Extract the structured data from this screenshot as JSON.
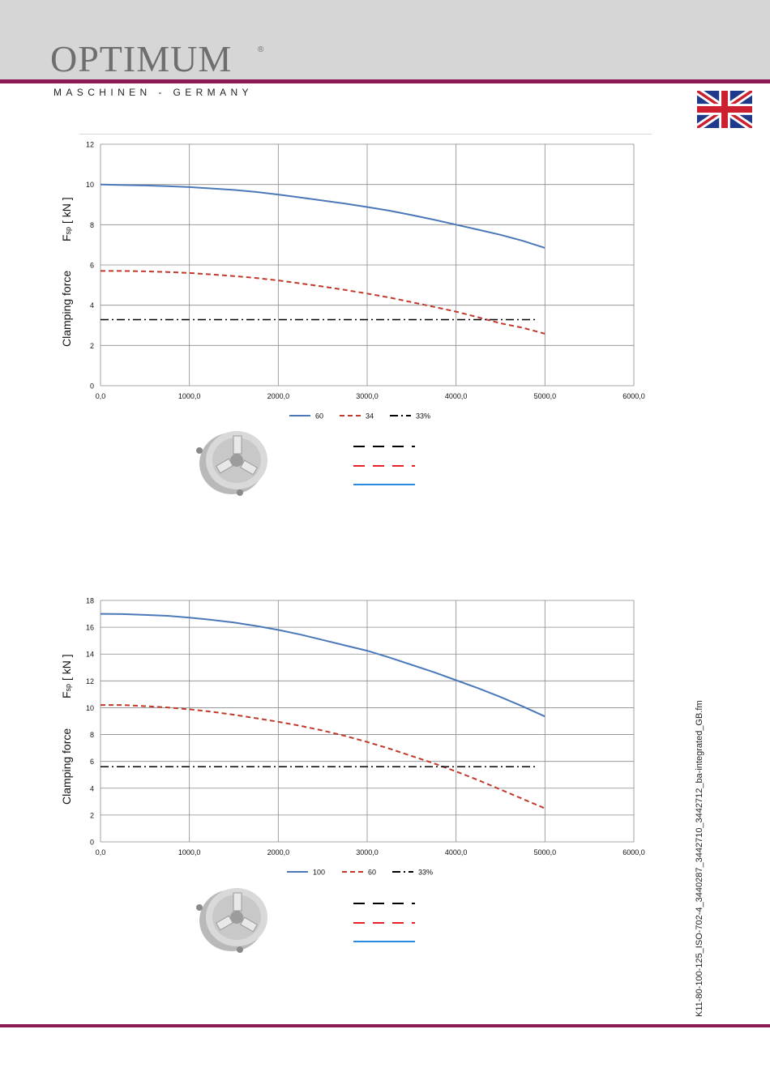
{
  "header": {
    "logo_text": "OPTIMUM",
    "logo_reg": "®",
    "logo_subtitle": "MASCHINEN - GERMANY",
    "brand_color": "#8c1a55"
  },
  "side_text": "K11-80-100-125_ISO-702-4_3440287_3442710_3442712_ba-integrated_GB.fm",
  "flag_icon": "uk-flag-icon",
  "chart_data": [
    {
      "type": "line",
      "ylabel_main": "Clamping force",
      "ylabel_sym": "F",
      "ylabel_sub": "sp",
      "ylabel_unit": "[ kN ]",
      "xlim": [
        0,
        6000
      ],
      "ylim": [
        0,
        12
      ],
      "xticks": [
        0,
        1000,
        2000,
        3000,
        4000,
        5000,
        6000
      ],
      "xtick_labels": [
        "0,0",
        "1000,0",
        "2000,0",
        "3000,0",
        "4000,0",
        "5000,0",
        "6000,0"
      ],
      "yticks": [
        0,
        2,
        4,
        6,
        8,
        10,
        12
      ],
      "ytick_labels": [
        "0",
        "2",
        "4",
        "6",
        "8",
        "10",
        "12"
      ],
      "grid": true,
      "legend_position": "bottom",
      "series": [
        {
          "name": "60",
          "color": "#4a78b8",
          "dash": "solid",
          "x": [
            0,
            250,
            500,
            750,
            1000,
            1250,
            1500,
            1750,
            2000,
            2250,
            2500,
            2750,
            3000,
            3250,
            3500,
            3750,
            4000,
            4250,
            4500,
            4750,
            5000
          ],
          "y": [
            10.0,
            9.97,
            9.95,
            9.92,
            9.87,
            9.8,
            9.73,
            9.63,
            9.5,
            9.35,
            9.2,
            9.05,
            8.88,
            8.7,
            8.48,
            8.25,
            8.0,
            7.75,
            7.5,
            7.2,
            6.85
          ]
        },
        {
          "name": "34",
          "color": "#c0392b",
          "dash": "dashed",
          "x": [
            0,
            250,
            500,
            750,
            1000,
            1250,
            1500,
            1750,
            2000,
            2250,
            2500,
            2750,
            3000,
            3250,
            3500,
            3750,
            4000,
            4250,
            4500,
            4750,
            5000
          ],
          "y": [
            5.7,
            5.7,
            5.68,
            5.65,
            5.6,
            5.53,
            5.45,
            5.35,
            5.23,
            5.08,
            4.93,
            4.76,
            4.58,
            4.38,
            4.15,
            3.92,
            3.68,
            3.4,
            3.1,
            2.88,
            2.58
          ]
        },
        {
          "name": "33%",
          "color": "#000000",
          "dash": "dashdot",
          "x": [
            0,
            4900
          ],
          "y": [
            3.28,
            3.28
          ]
        }
      ]
    },
    {
      "type": "line",
      "ylabel_main": "Clamping force",
      "ylabel_sym": "F",
      "ylabel_sub": "sp",
      "ylabel_unit": "[ kN ]",
      "xlim": [
        0,
        6000
      ],
      "ylim": [
        0,
        18
      ],
      "xticks": [
        0,
        1000,
        2000,
        3000,
        4000,
        5000,
        6000
      ],
      "xtick_labels": [
        "0,0",
        "1000,0",
        "2000,0",
        "3000,0",
        "4000,0",
        "5000,0",
        "6000,0"
      ],
      "yticks": [
        0,
        2,
        4,
        6,
        8,
        10,
        12,
        14,
        16,
        18
      ],
      "ytick_labels": [
        "0",
        "2",
        "4",
        "6",
        "8",
        "10",
        "12",
        "14",
        "16",
        "18"
      ],
      "grid": true,
      "legend_position": "bottom",
      "series": [
        {
          "name": "100",
          "color": "#4a78b8",
          "dash": "solid",
          "x": [
            0,
            250,
            500,
            750,
            1000,
            1250,
            1500,
            1750,
            2000,
            2250,
            2500,
            2750,
            3000,
            3250,
            3500,
            3750,
            4000,
            4250,
            4500,
            4750,
            5000
          ],
          "y": [
            17.0,
            16.98,
            16.92,
            16.85,
            16.72,
            16.55,
            16.35,
            16.1,
            15.8,
            15.45,
            15.05,
            14.65,
            14.25,
            13.75,
            13.2,
            12.65,
            12.05,
            11.45,
            10.8,
            10.1,
            9.35
          ]
        },
        {
          "name": "60",
          "color": "#c0392b",
          "dash": "dashed",
          "x": [
            0,
            250,
            500,
            750,
            1000,
            1250,
            1500,
            1750,
            2000,
            2250,
            2500,
            2750,
            3000,
            3250,
            3500,
            3750,
            4000,
            4250,
            4500,
            4750,
            5000
          ],
          "y": [
            10.2,
            10.2,
            10.12,
            10.02,
            9.88,
            9.7,
            9.48,
            9.22,
            8.95,
            8.65,
            8.3,
            7.9,
            7.45,
            6.95,
            6.4,
            5.85,
            5.25,
            4.6,
            3.9,
            3.2,
            2.5
          ]
        },
        {
          "name": "33%",
          "color": "#000000",
          "dash": "dashdot",
          "x": [
            0,
            4900
          ],
          "y": [
            5.6,
            5.6
          ]
        }
      ]
    }
  ]
}
